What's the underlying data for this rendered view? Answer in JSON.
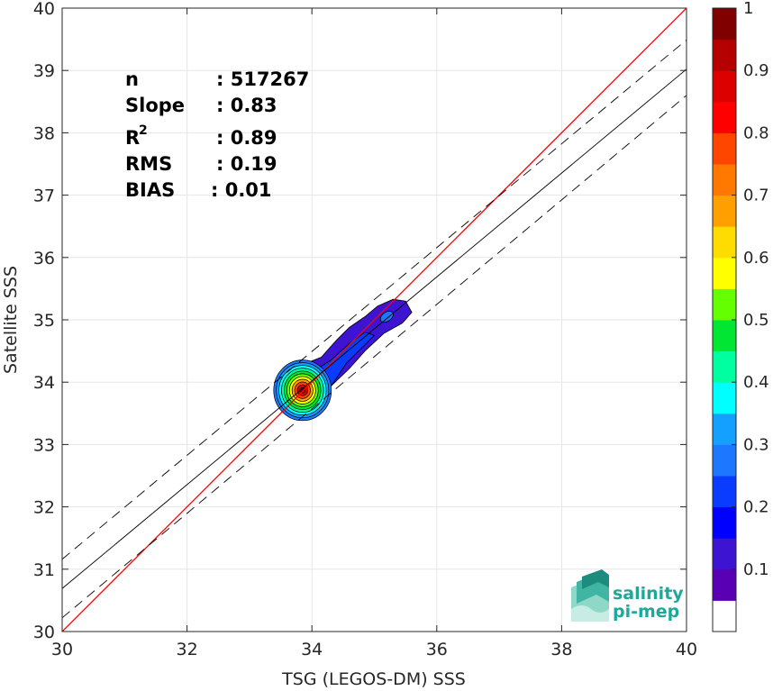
{
  "chart_data": {
    "type": "heatmap",
    "subtype": "density-contour scatter",
    "title": "",
    "xlabel": "TSG (LEGOS-DM) SSS",
    "ylabel": "Satellite SSS",
    "xlim": [
      30,
      40
    ],
    "ylim": [
      30,
      40
    ],
    "xticks": [
      30,
      32,
      34,
      36,
      38,
      40
    ],
    "yticks": [
      30,
      31,
      32,
      33,
      34,
      35,
      36,
      37,
      38,
      39,
      40
    ],
    "grid": true,
    "stats": {
      "n_label": "n",
      "n_value": ": 517267",
      "slope_label": "Slope",
      "slope_value": ": 0.83",
      "r2_label": "R",
      "r2_sup": "2",
      "r2_value": ": 0.89",
      "rms_label": "RMS",
      "rms_value": ": 0.19",
      "bias_label": "BIAS",
      "bias_value": ": 0.01"
    },
    "lines": {
      "identity": {
        "slope": 1,
        "intercept": 0,
        "color": "#ff0000"
      },
      "fit": {
        "x": [
          30,
          40
        ],
        "y": [
          30.69,
          39.02
        ],
        "color": "#000000"
      },
      "fit_upper": {
        "x": [
          30,
          40
        ],
        "y": [
          31.16,
          39.49
        ],
        "dash": true
      },
      "fit_lower": {
        "x": [
          30,
          40
        ],
        "y": [
          30.22,
          38.6
        ],
        "dash": true
      }
    },
    "density": {
      "peak": [
        33.85,
        33.87
      ],
      "secondary_peak": [
        35.2,
        35.05
      ],
      "outer_contour": [
        [
          33.4,
          33.85
        ],
        [
          33.5,
          34.05
        ],
        [
          33.65,
          34.2
        ],
        [
          33.9,
          34.3
        ],
        [
          34.15,
          34.4
        ],
        [
          34.4,
          34.68
        ],
        [
          34.6,
          34.88
        ],
        [
          34.85,
          35.05
        ],
        [
          35.05,
          35.22
        ],
        [
          35.3,
          35.33
        ],
        [
          35.5,
          35.3
        ],
        [
          35.6,
          35.12
        ],
        [
          35.45,
          34.95
        ],
        [
          35.15,
          34.78
        ],
        [
          34.85,
          34.5
        ],
        [
          34.6,
          34.22
        ],
        [
          34.35,
          33.98
        ],
        [
          34.15,
          33.78
        ],
        [
          33.95,
          33.55
        ],
        [
          33.75,
          33.5
        ],
        [
          33.55,
          33.58
        ],
        [
          33.42,
          33.7
        ]
      ],
      "inner_contour": [
        [
          33.55,
          33.88
        ],
        [
          33.65,
          34.05
        ],
        [
          33.9,
          34.1
        ],
        [
          34.3,
          34.35
        ],
        [
          34.6,
          34.62
        ],
        [
          34.85,
          34.8
        ],
        [
          35.0,
          34.75
        ],
        [
          34.8,
          34.55
        ],
        [
          34.55,
          34.3
        ],
        [
          34.35,
          34.0
        ],
        [
          34.1,
          33.7
        ],
        [
          33.85,
          33.62
        ],
        [
          33.62,
          33.7
        ]
      ]
    },
    "colorbar": {
      "min": 0,
      "max": 1,
      "ticks": [
        "0.1",
        "0.2",
        "0.3",
        "0.4",
        "0.5",
        "0.6",
        "0.7",
        "0.8",
        "0.9",
        "1"
      ],
      "tick_values": [
        0.1,
        0.2,
        0.3,
        0.4,
        0.5,
        0.6,
        0.7,
        0.8,
        0.9,
        1.0
      ],
      "colors": [
        "#ffffff",
        "#5a00b4",
        "#3c14d2",
        "#0000ff",
        "#0a3cff",
        "#1e78ff",
        "#14a0ff",
        "#00ffff",
        "#00ffa0",
        "#00e632",
        "#64ff00",
        "#ffff00",
        "#ffdc00",
        "#ffa000",
        "#ff7800",
        "#ff4600",
        "#ff0000",
        "#dc0000",
        "#b40000",
        "#800000"
      ]
    }
  },
  "logo": {
    "line1": "salinity",
    "line2": "pi-mep"
  }
}
